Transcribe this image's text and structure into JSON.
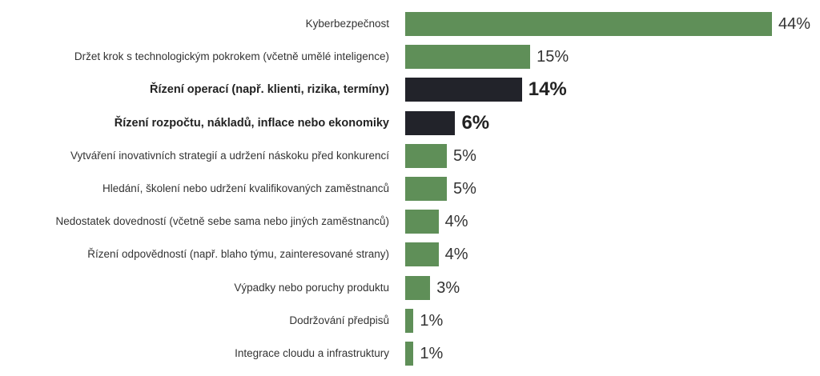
{
  "chart_data": {
    "type": "bar",
    "orientation": "horizontal",
    "title": "",
    "xlabel": "",
    "ylabel": "",
    "xlim": [
      0,
      44
    ],
    "grid": false,
    "value_suffix": "%",
    "categories": [
      "Kyberbezpečnost",
      "Držet krok s technologickým pokrokem (včetně umělé inteligence)",
      "Řízení operací (např. klienti, rizika, termíny)",
      "Řízení rozpočtu, nákladů, inflace nebo ekonomiky",
      "Vytváření inovativních strategií a udržení náskoku před konkurencí",
      "Hledání, školení nebo udržení kvalifikovaných zaměstnanců",
      "Nedostatek dovedností (včetně sebe sama nebo jiných zaměstnanců)",
      "Řízení odpovědností (např. blaho týmu, zainteresované strany)",
      "Výpadky nebo poruchy produktu",
      "Dodržování předpisů",
      "Integrace cloudu a infrastruktury"
    ],
    "values": [
      44,
      15,
      14,
      6,
      5,
      5,
      4,
      4,
      3,
      1,
      1
    ],
    "value_labels": [
      "44%",
      "15%",
      "14%",
      "6%",
      "5%",
      "5%",
      "4%",
      "4%",
      "3%",
      "1%",
      "1%"
    ],
    "highlighted": [
      false,
      false,
      true,
      true,
      false,
      false,
      false,
      false,
      false,
      false,
      false
    ],
    "colors": {
      "default": "#5f8f58",
      "highlight": "#22232a"
    }
  }
}
